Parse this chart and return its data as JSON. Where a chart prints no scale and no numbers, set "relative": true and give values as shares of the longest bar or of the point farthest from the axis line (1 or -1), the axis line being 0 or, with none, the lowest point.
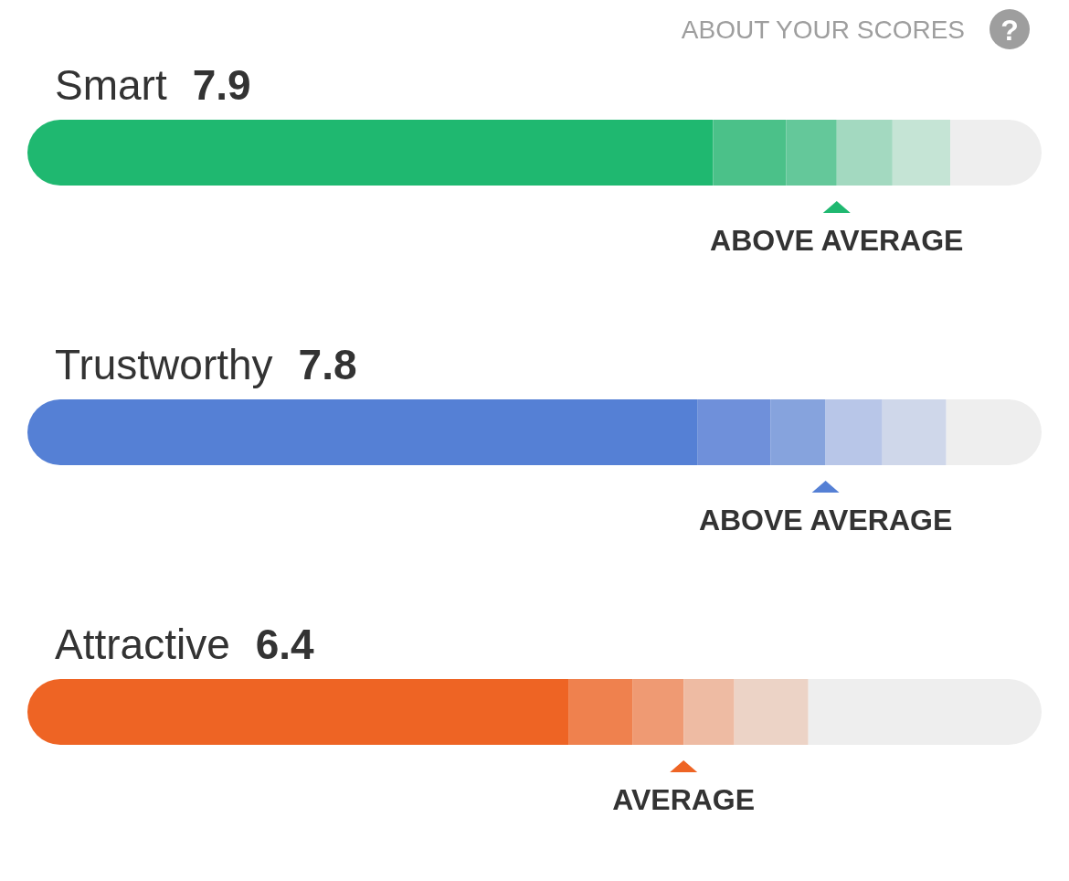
{
  "chart_data": {
    "type": "bar",
    "orientation": "horizontal",
    "stacked": true,
    "relative": true,
    "tick_labels": "y",
    "categories": [
      "Smart",
      "Trustworthy",
      "Attractive"
    ],
    "series": [
      {
        "colors": [
          "#1fb870",
          "#5580d5",
          "#ee6424"
        ],
        "values": [
          0.676,
          0.661,
          0.534
        ]
      },
      {
        "colors": [
          "#4bc189",
          "#6f90da",
          "#ef814e"
        ],
        "values": [
          0.072,
          0.072,
          0.063
        ]
      },
      {
        "colors": [
          "#64c89a",
          "#86a3dd",
          "#ef9a73"
        ],
        "values": [
          0.05,
          0.054,
          0.05
        ]
      },
      {
        "colors": [
          "#a3d9c0",
          "#b8c6e8",
          "#eebba3"
        ],
        "values": [
          0.055,
          0.056,
          0.05
        ]
      },
      {
        "colors": [
          "#c5e4d5",
          "#cfd7ea",
          "#ecd3c6"
        ],
        "values": [
          0.057,
          0.063,
          0.073
        ]
      },
      {
        "colors": [
          "#eeeeee",
          "#eeeeee",
          "#eeeeee"
        ],
        "values": [
          0.09,
          0.094,
          0.23
        ]
      }
    ],
    "annotations": [
      "ABOUT YOUR SCORES",
      "?",
      "7.9",
      "7.8",
      "6.4",
      "ABOVE AVERAGE",
      "ABOVE AVERAGE",
      "AVERAGE"
    ]
  }
}
